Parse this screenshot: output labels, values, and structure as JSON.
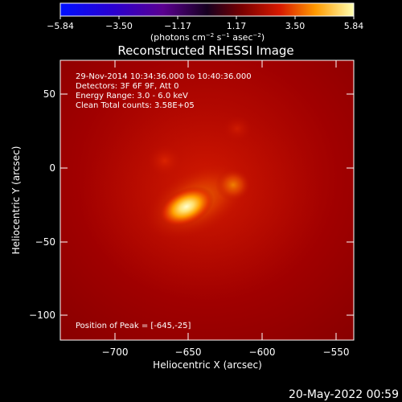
{
  "colorbar": {
    "tick_labels": [
      "−5.84",
      "−3.50",
      "−1.17",
      "1.17",
      "3.50",
      "5.84"
    ],
    "units_prefix": "(photons cm",
    "units_exp1": "−2",
    "units_mid": " s",
    "units_exp2": "−1",
    "units_mid2": " asec",
    "units_exp3": "−2",
    "units_suffix": ")"
  },
  "image": {
    "title": "Reconstructed RHESSI Image",
    "info_lines": [
      "29-Nov-2014 10:34:36.000 to 10:40:36.000",
      "Detectors: 3F 6F 9F, Att 0",
      "Energy Range: 3.0 - 6.0 keV",
      "Clean    Total counts: 3.58E+05"
    ],
    "peak_text": "Position of Peak = [-645,-25]",
    "xlabel": "Heliocentric X (arcsec)",
    "ylabel": "Heliocentric Y (arcsec)",
    "x_ticks": [
      "−700",
      "−650",
      "−600",
      "−550"
    ],
    "y_ticks": [
      "50",
      "0",
      "−50",
      "−100"
    ],
    "x_range": [
      -740,
      -550
    ],
    "y_range": [
      -120,
      75
    ]
  },
  "footer": {
    "timestamp": "20-May-2022 00:59"
  }
}
